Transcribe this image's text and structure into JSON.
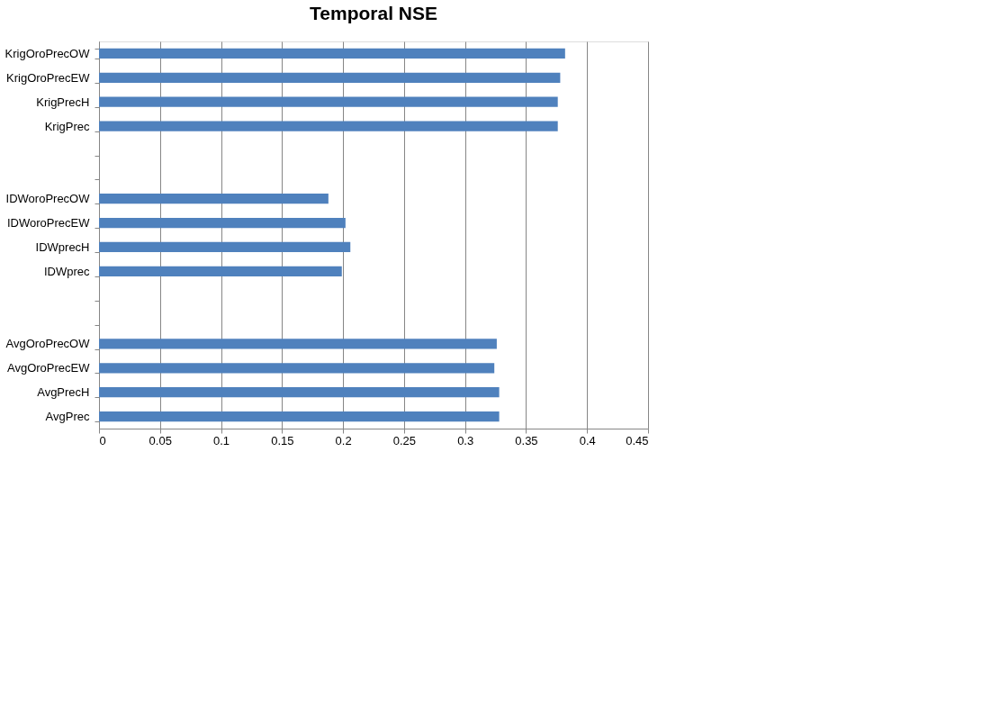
{
  "chart_data": {
    "type": "bar",
    "orientation": "horizontal",
    "title": "Temporal NSE",
    "categories": [
      "KrigOroPrecOW",
      "KrigOroPrecEW",
      "KrigPrecH",
      "KrigPrec",
      null,
      null,
      "IDWoroPrecOW",
      "IDWoroPrecEW",
      "IDWprecH",
      "IDWprec",
      null,
      null,
      "AvgOroPrecOW",
      "AvgOroPrecEW",
      "AvgPrecH",
      "AvgPrec"
    ],
    "values": [
      0.382,
      0.378,
      0.376,
      0.376,
      null,
      null,
      0.188,
      0.202,
      0.206,
      0.199,
      null,
      null,
      0.326,
      0.324,
      0.328,
      0.328
    ],
    "color": "#4f81bd",
    "xlim": [
      0,
      0.45
    ],
    "xticks": [
      0,
      0.05,
      0.1,
      0.15,
      0.2,
      0.25,
      0.3,
      0.35,
      0.4,
      0.45
    ],
    "grid": "x"
  }
}
